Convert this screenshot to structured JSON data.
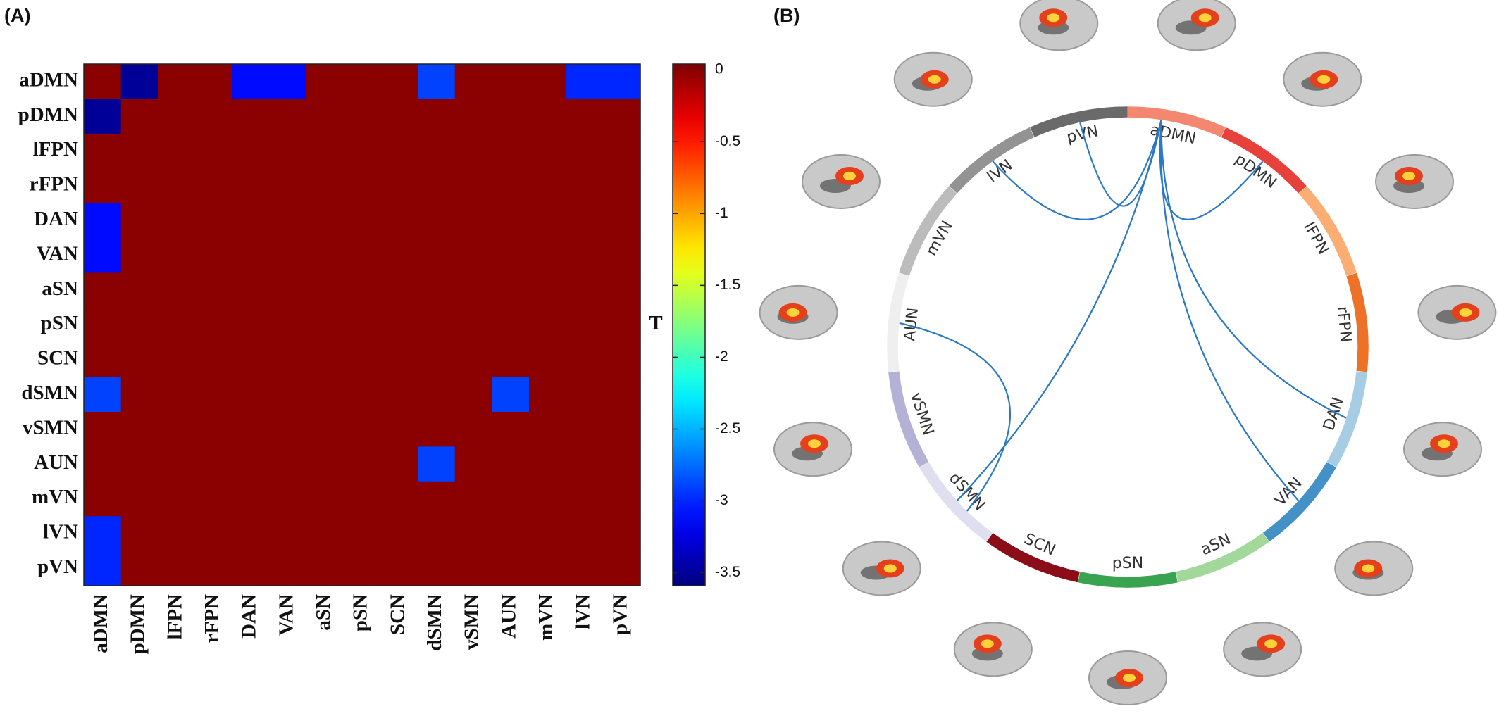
{
  "chart_data": [
    {
      "type": "heatmap",
      "panel": "(A)",
      "x": [
        "aDMN",
        "pDMN",
        "lFPN",
        "rFPN",
        "DAN",
        "VAN",
        "aSN",
        "pSN",
        "SCN",
        "dSMN",
        "vSMN",
        "AUN",
        "mVN",
        "lVN",
        "pVN"
      ],
      "y": [
        "aDMN",
        "pDMN",
        "lFPN",
        "rFPN",
        "DAN",
        "VAN",
        "aSN",
        "pSN",
        "SCN",
        "dSMN",
        "vSMN",
        "AUN",
        "mVN",
        "lVN",
        "pVN"
      ],
      "values": [
        [
          0,
          -3.5,
          0,
          0,
          -3.1,
          -3.1,
          0,
          0,
          0,
          -2.9,
          0,
          0,
          0,
          -3.0,
          -3.0
        ],
        [
          -3.5,
          0,
          0,
          0,
          0,
          0,
          0,
          0,
          0,
          0,
          0,
          0,
          0,
          0,
          0
        ],
        [
          0,
          0,
          0,
          0,
          0,
          0,
          0,
          0,
          0,
          0,
          0,
          0,
          0,
          0,
          0
        ],
        [
          0,
          0,
          0,
          0,
          0,
          0,
          0,
          0,
          0,
          0,
          0,
          0,
          0,
          0,
          0
        ],
        [
          -3.1,
          0,
          0,
          0,
          0,
          0,
          0,
          0,
          0,
          0,
          0,
          0,
          0,
          0,
          0
        ],
        [
          -3.1,
          0,
          0,
          0,
          0,
          0,
          0,
          0,
          0,
          0,
          0,
          0,
          0,
          0,
          0
        ],
        [
          0,
          0,
          0,
          0,
          0,
          0,
          0,
          0,
          0,
          0,
          0,
          0,
          0,
          0,
          0
        ],
        [
          0,
          0,
          0,
          0,
          0,
          0,
          0,
          0,
          0,
          0,
          0,
          0,
          0,
          0,
          0
        ],
        [
          0,
          0,
          0,
          0,
          0,
          0,
          0,
          0,
          0,
          0,
          0,
          0,
          0,
          0,
          0
        ],
        [
          -2.9,
          0,
          0,
          0,
          0,
          0,
          0,
          0,
          0,
          0,
          0,
          -2.9,
          0,
          0,
          0
        ],
        [
          0,
          0,
          0,
          0,
          0,
          0,
          0,
          0,
          0,
          0,
          0,
          0,
          0,
          0,
          0
        ],
        [
          0,
          0,
          0,
          0,
          0,
          0,
          0,
          0,
          0,
          -2.9,
          0,
          0,
          0,
          0,
          0
        ],
        [
          0,
          0,
          0,
          0,
          0,
          0,
          0,
          0,
          0,
          0,
          0,
          0,
          0,
          0,
          0
        ],
        [
          -3.0,
          0,
          0,
          0,
          0,
          0,
          0,
          0,
          0,
          0,
          0,
          0,
          0,
          0,
          0
        ],
        [
          -3.0,
          0,
          0,
          0,
          0,
          0,
          0,
          0,
          0,
          0,
          0,
          0,
          0,
          0,
          0
        ]
      ],
      "colormap": "jet",
      "clim": [
        -3.59,
        0.04
      ],
      "cticks": [
        0,
        -0.5,
        -1,
        -1.5,
        -2,
        -2.5,
        -3,
        -3.5
      ],
      "colorbar_label": "T"
    },
    {
      "type": "chord",
      "panel": "(B)",
      "nodes": [
        {
          "name": "aDMN",
          "color": "#f4876f"
        },
        {
          "name": "pDMN",
          "color": "#e8403a"
        },
        {
          "name": "lFPN",
          "color": "#fbad73"
        },
        {
          "name": "rFPN",
          "color": "#ee7128"
        },
        {
          "name": "DAN",
          "color": "#a6cde4"
        },
        {
          "name": "VAN",
          "color": "#4391c7"
        },
        {
          "name": "aSN",
          "color": "#a2d99b"
        },
        {
          "name": "pSN",
          "color": "#3aa350"
        },
        {
          "name": "SCN",
          "color": "#8b0d17"
        },
        {
          "name": "dSMN",
          "color": "#e0dff0"
        },
        {
          "name": "vSMN",
          "color": "#b3b1d6"
        },
        {
          "name": "AUN",
          "color": "#efefef"
        },
        {
          "name": "mVN",
          "color": "#bcbcbc"
        },
        {
          "name": "lVN",
          "color": "#939393"
        },
        {
          "name": "pVN",
          "color": "#6a6a6a"
        }
      ],
      "link_color": "#2a78c6"
    }
  ]
}
